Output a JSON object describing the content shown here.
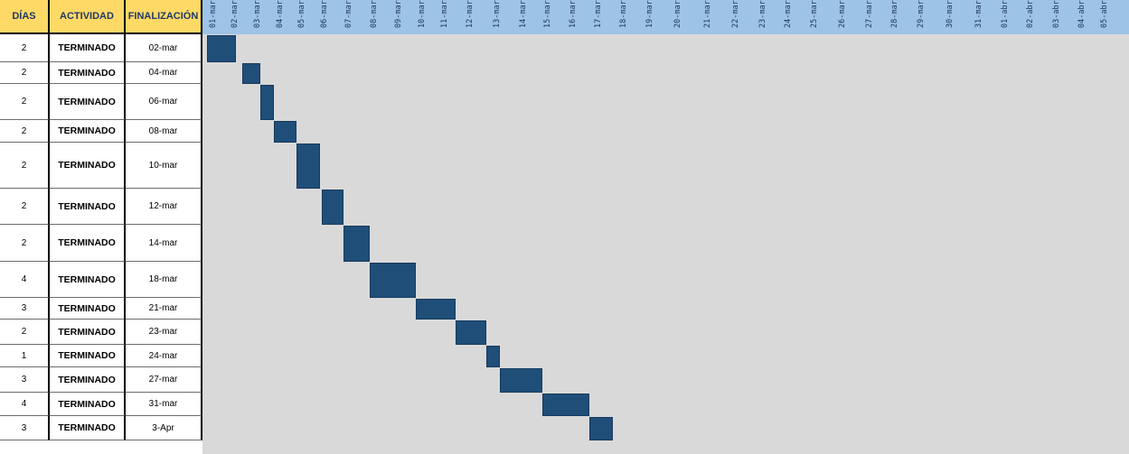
{
  "headers": {
    "dias": "DÍAS",
    "actividad": "ACTIVIDAD",
    "finalizacion": "FINALIZACIÓN"
  },
  "dates": [
    "01-mar",
    "02-mar",
    "03-mar",
    "04-mar",
    "05-mar",
    "06-mar",
    "07-mar",
    "08-mar",
    "09-mar",
    "10-mar",
    "11-mar",
    "12-mar",
    "13-mar",
    "14-mar",
    "15-mar",
    "16-mar",
    "17-mar",
    "18-mar",
    "19-mar",
    "20-mar",
    "21-mar",
    "22-mar",
    "23-mar",
    "24-mar",
    "25-mar",
    "26-mar",
    "27-mar",
    "28-mar",
    "29-mar",
    "30-mar",
    "31-mar",
    "01-abr",
    "02-abr",
    "03-abr",
    "04-abr",
    "05-abr"
  ],
  "rows": [
    {
      "dias": "2",
      "actividad": "TERMINADO",
      "finalizacion": "02-mar"
    },
    {
      "dias": "2",
      "actividad": "TERMINADO",
      "finalizacion": "04-mar"
    },
    {
      "dias": "2",
      "actividad": "TERMINADO",
      "finalizacion": "06-mar"
    },
    {
      "dias": "2",
      "actividad": "TERMINADO",
      "finalizacion": "08-mar"
    },
    {
      "dias": "2",
      "actividad": "TERMINADO",
      "finalizacion": "10-mar"
    },
    {
      "dias": "2",
      "actividad": "TERMINADO",
      "finalizacion": "12-mar"
    },
    {
      "dias": "2",
      "actividad": "TERMINADO",
      "finalizacion": "14-mar"
    },
    {
      "dias": "4",
      "actividad": "TERMINADO",
      "finalizacion": "18-mar"
    },
    {
      "dias": "3",
      "actividad": "TERMINADO",
      "finalizacion": "21-mar"
    },
    {
      "dias": "2",
      "actividad": "TERMINADO",
      "finalizacion": "23-mar"
    },
    {
      "dias": "1",
      "actividad": "TERMINADO",
      "finalizacion": "24-mar"
    },
    {
      "dias": "3",
      "actividad": "TERMINADO",
      "finalizacion": "27-mar"
    },
    {
      "dias": "4",
      "actividad": "TERMINADO",
      "finalizacion": "31-mar"
    },
    {
      "dias": "3",
      "actividad": "TERMINADO",
      "finalizacion": "3-Apr"
    }
  ],
  "colors": {
    "header_bg": "#ffd966",
    "timeline_bg": "#9dc3e6",
    "bar": "#1f4e79",
    "grid": "#d9d9d9"
  }
}
